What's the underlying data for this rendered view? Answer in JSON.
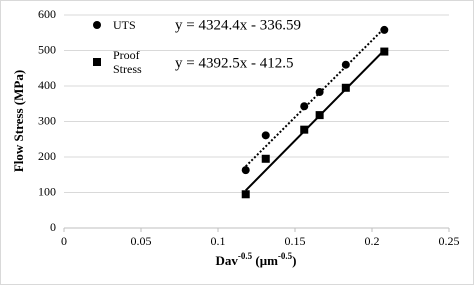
{
  "chart_data": {
    "type": "scatter",
    "x_label": [
      {
        "text": "Dav"
      },
      {
        "text": "-0.5",
        "sup": true
      },
      {
        "text": " (μm"
      },
      {
        "text": "-0.5",
        "sup": true
      },
      {
        "text": ")"
      }
    ],
    "y_label": "Flow Stress (MPa)",
    "xlim": [
      0,
      0.25
    ],
    "xticks": [
      0,
      0.05,
      0.1,
      0.15,
      0.2,
      0.25
    ],
    "ylim": [
      0,
      600
    ],
    "yticks": [
      0,
      100,
      200,
      300,
      400,
      500,
      600
    ],
    "grid": true,
    "legend": "upper left",
    "series": [
      {
        "name": "UTS",
        "color": "#000000",
        "marker": "circle",
        "x": [
          0.118,
          0.131,
          0.156,
          0.166,
          0.183,
          0.208
        ],
        "values": [
          163,
          261,
          343,
          383,
          460,
          558
        ],
        "trendline": {
          "slope": 4324.4,
          "intercept": -336.59,
          "label": "y = 4324.4x - 336.59",
          "style": "dotted"
        }
      },
      {
        "name": "Proof Stress",
        "color": "#000000",
        "marker": "square",
        "x": [
          0.118,
          0.131,
          0.156,
          0.166,
          0.183,
          0.208
        ],
        "values": [
          95,
          195,
          277,
          318,
          395,
          497
        ],
        "trendline": {
          "slope": 4392.5,
          "intercept": -412.5,
          "label": "y = 4392.5x - 412.5",
          "style": "solid"
        }
      }
    ]
  }
}
